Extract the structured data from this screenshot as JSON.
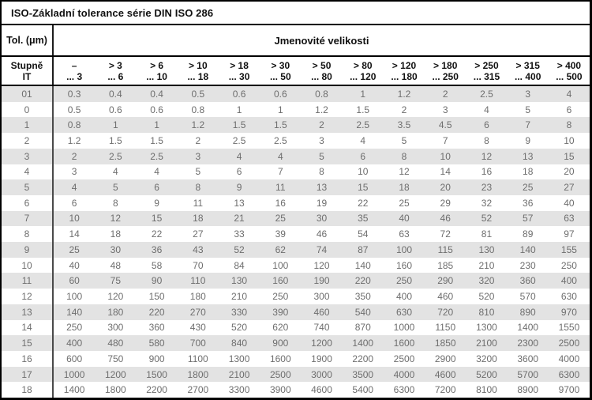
{
  "title": "ISO-Základní tolerance série DIN ISO 286",
  "header": {
    "tol_label": "Tol. (μm)",
    "sizes_label": "Jmenovité velikosti",
    "grade_line1": "Stupně",
    "grade_line2": "IT",
    "columns": [
      {
        "top": "–",
        "bottom": "... 3"
      },
      {
        "top": "> 3",
        "bottom": "... 6"
      },
      {
        "top": "> 6",
        "bottom": "... 10"
      },
      {
        "top": "> 10",
        "bottom": "... 18"
      },
      {
        "top": "> 18",
        "bottom": "... 30"
      },
      {
        "top": "> 30",
        "bottom": "... 50"
      },
      {
        "top": "> 50",
        "bottom": "... 80"
      },
      {
        "top": "> 80",
        "bottom": "... 120"
      },
      {
        "top": "> 120",
        "bottom": "... 180"
      },
      {
        "top": "> 180",
        "bottom": "... 250"
      },
      {
        "top": "> 250",
        "bottom": "... 315"
      },
      {
        "top": "> 315",
        "bottom": "... 400"
      },
      {
        "top": "> 400",
        "bottom": "... 500"
      }
    ]
  },
  "rows": [
    {
      "it": "01",
      "values": [
        "0.3",
        "0.4",
        "0.4",
        "0.5",
        "0.6",
        "0.6",
        "0.8",
        "1",
        "1.2",
        "2",
        "2.5",
        "3",
        "4"
      ]
    },
    {
      "it": "0",
      "values": [
        "0.5",
        "0.6",
        "0.6",
        "0.8",
        "1",
        "1",
        "1.2",
        "1.5",
        "2",
        "3",
        "4",
        "5",
        "6"
      ]
    },
    {
      "it": "1",
      "values": [
        "0.8",
        "1",
        "1",
        "1.2",
        "1.5",
        "1.5",
        "2",
        "2.5",
        "3.5",
        "4.5",
        "6",
        "7",
        "8"
      ]
    },
    {
      "it": "2",
      "values": [
        "1.2",
        "1.5",
        "1.5",
        "2",
        "2.5",
        "2.5",
        "3",
        "4",
        "5",
        "7",
        "8",
        "9",
        "10"
      ]
    },
    {
      "it": "3",
      "values": [
        "2",
        "2.5",
        "2.5",
        "3",
        "4",
        "4",
        "5",
        "6",
        "8",
        "10",
        "12",
        "13",
        "15"
      ]
    },
    {
      "it": "4",
      "values": [
        "3",
        "4",
        "4",
        "5",
        "6",
        "7",
        "8",
        "10",
        "12",
        "14",
        "16",
        "18",
        "20"
      ]
    },
    {
      "it": "5",
      "values": [
        "4",
        "5",
        "6",
        "8",
        "9",
        "11",
        "13",
        "15",
        "18",
        "20",
        "23",
        "25",
        "27"
      ]
    },
    {
      "it": "6",
      "values": [
        "6",
        "8",
        "9",
        "11",
        "13",
        "16",
        "19",
        "22",
        "25",
        "29",
        "32",
        "36",
        "40"
      ]
    },
    {
      "it": "7",
      "values": [
        "10",
        "12",
        "15",
        "18",
        "21",
        "25",
        "30",
        "35",
        "40",
        "46",
        "52",
        "57",
        "63"
      ]
    },
    {
      "it": "8",
      "values": [
        "14",
        "18",
        "22",
        "27",
        "33",
        "39",
        "46",
        "54",
        "63",
        "72",
        "81",
        "89",
        "97"
      ]
    },
    {
      "it": "9",
      "values": [
        "25",
        "30",
        "36",
        "43",
        "52",
        "62",
        "74",
        "87",
        "100",
        "115",
        "130",
        "140",
        "155"
      ]
    },
    {
      "it": "10",
      "values": [
        "40",
        "48",
        "58",
        "70",
        "84",
        "100",
        "120",
        "140",
        "160",
        "185",
        "210",
        "230",
        "250"
      ]
    },
    {
      "it": "11",
      "values": [
        "60",
        "75",
        "90",
        "110",
        "130",
        "160",
        "190",
        "220",
        "250",
        "290",
        "320",
        "360",
        "400"
      ]
    },
    {
      "it": "12",
      "values": [
        "100",
        "120",
        "150",
        "180",
        "210",
        "250",
        "300",
        "350",
        "400",
        "460",
        "520",
        "570",
        "630"
      ]
    },
    {
      "it": "13",
      "values": [
        "140",
        "180",
        "220",
        "270",
        "330",
        "390",
        "460",
        "540",
        "630",
        "720",
        "810",
        "890",
        "970"
      ]
    },
    {
      "it": "14",
      "values": [
        "250",
        "300",
        "360",
        "430",
        "520",
        "620",
        "740",
        "870",
        "1000",
        "1150",
        "1300",
        "1400",
        "1550"
      ]
    },
    {
      "it": "15",
      "values": [
        "400",
        "480",
        "580",
        "700",
        "840",
        "900",
        "1200",
        "1400",
        "1600",
        "1850",
        "2100",
        "2300",
        "2500"
      ]
    },
    {
      "it": "16",
      "values": [
        "600",
        "750",
        "900",
        "1100",
        "1300",
        "1600",
        "1900",
        "2200",
        "2500",
        "2900",
        "3200",
        "3600",
        "4000"
      ]
    },
    {
      "it": "17",
      "values": [
        "1000",
        "1200",
        "1500",
        "1800",
        "2100",
        "2500",
        "3000",
        "3500",
        "4000",
        "4600",
        "5200",
        "5700",
        "6300"
      ]
    },
    {
      "it": "18",
      "values": [
        "1400",
        "1800",
        "2200",
        "2700",
        "3300",
        "3900",
        "4600",
        "5400",
        "6300",
        "7200",
        "8100",
        "8900",
        "9700"
      ]
    }
  ],
  "colors": {
    "stripe_gray": "#e3e3e3",
    "data_text_gray": "#6e6e6e",
    "border_black": "#000000"
  }
}
